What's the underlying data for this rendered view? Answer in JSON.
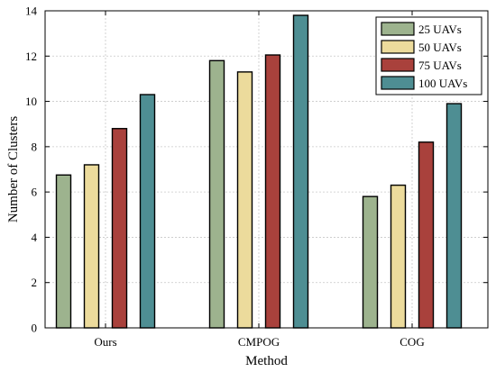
{
  "chart_data": {
    "type": "bar",
    "categories": [
      "Ours",
      "CMPOG",
      "COG"
    ],
    "series": [
      {
        "name": "25 UAVs",
        "color": "#9db38e",
        "values": [
          6.75,
          11.8,
          5.8
        ]
      },
      {
        "name": "50 UAVs",
        "color": "#ecdb9c",
        "values": [
          7.2,
          11.3,
          6.3
        ]
      },
      {
        "name": "75 UAVs",
        "color": "#a9413c",
        "values": [
          8.8,
          12.05,
          8.2
        ]
      },
      {
        "name": "100 UAVs",
        "color": "#4e8e93",
        "values": [
          10.3,
          13.8,
          9.9
        ]
      }
    ],
    "xlabel": "Method",
    "ylabel": "Number of Clusters",
    "ylim": [
      0,
      14
    ],
    "yticks": [
      0,
      2,
      4,
      6,
      8,
      10,
      12,
      14
    ],
    "grid": true,
    "legend_position": "top-right"
  }
}
